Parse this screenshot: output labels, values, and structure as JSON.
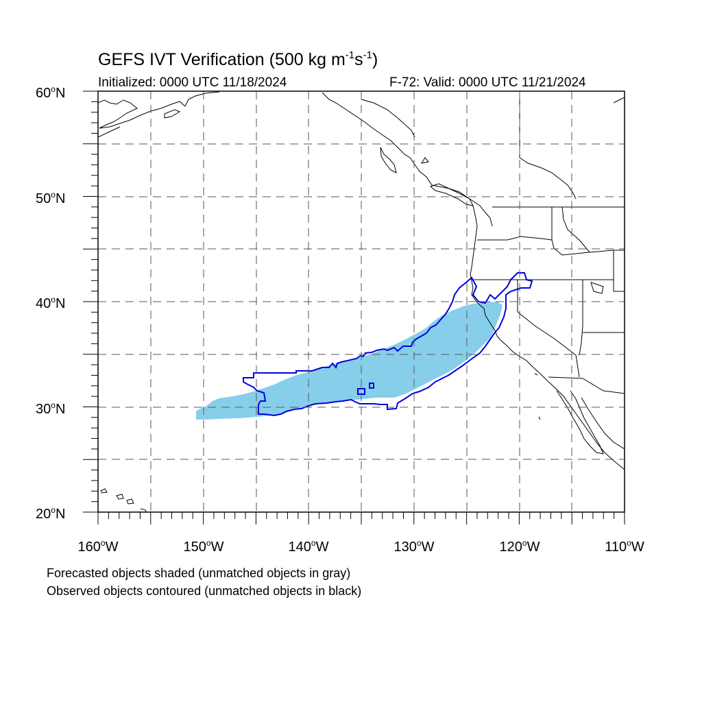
{
  "title": {
    "prefix": "GEFS IVT Verification (500 kg m",
    "exp1": "-1",
    "mid": "s",
    "exp2": "-1",
    "suffix": ")"
  },
  "initialized": "Initialized: 0000 UTC 11/18/2024",
  "valid": "F-72: Valid: 0000 UTC 11/21/2024",
  "lat_labels": [
    {
      "value": "60",
      "hemi": "N"
    },
    {
      "value": "50",
      "hemi": "N"
    },
    {
      "value": "40",
      "hemi": "N"
    },
    {
      "value": "30",
      "hemi": "N"
    },
    {
      "value": "20",
      "hemi": "N"
    }
  ],
  "lon_labels": [
    {
      "value": "160",
      "hemi": "W"
    },
    {
      "value": "150",
      "hemi": "W"
    },
    {
      "value": "140",
      "hemi": "W"
    },
    {
      "value": "130",
      "hemi": "W"
    },
    {
      "value": "120",
      "hemi": "W"
    },
    {
      "value": "110",
      "hemi": "W"
    }
  ],
  "captions": [
    "Forecasted objects shaded (unmatched objects in gray)",
    "Observed objects contoured (unmatched objects in black)"
  ],
  "colors": {
    "forecast_fill": "#87ceeb",
    "observed_contour": "#0000dd",
    "coastline": "#000000",
    "grid": "#555555"
  },
  "map_extent": {
    "lon_min": -160,
    "lon_max": -110,
    "lat_min": 20,
    "lat_max": 60
  }
}
